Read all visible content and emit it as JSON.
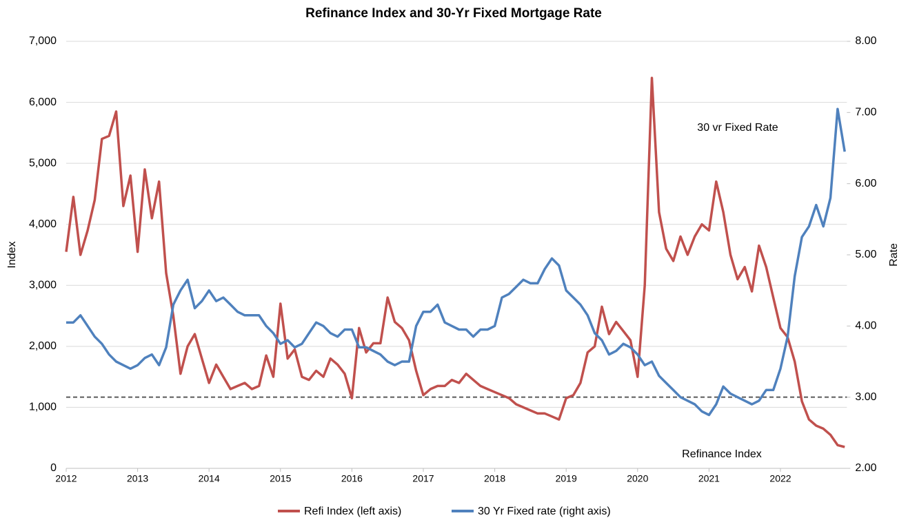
{
  "chart_data": {
    "type": "line",
    "title": "Refinance Index and 30-Yr Fixed Mortgage Rate",
    "y_label": "Index",
    "y2_label": "Rate",
    "annotations": [
      "30 vr Fixed Rate",
      "Refinance Index"
    ],
    "x": [
      2012.0,
      2012.1,
      2012.2,
      2012.3,
      2012.4,
      2012.5,
      2012.6,
      2012.7,
      2012.8,
      2012.9,
      2013.0,
      2013.1,
      2013.2,
      2013.3,
      2013.4,
      2013.5,
      2013.6,
      2013.7,
      2013.8,
      2013.9,
      2014.0,
      2014.1,
      2014.2,
      2014.3,
      2014.4,
      2014.5,
      2014.6,
      2014.7,
      2014.8,
      2014.9,
      2015.0,
      2015.1,
      2015.2,
      2015.3,
      2015.4,
      2015.5,
      2015.6,
      2015.7,
      2015.8,
      2015.9,
      2016.0,
      2016.1,
      2016.2,
      2016.3,
      2016.4,
      2016.5,
      2016.6,
      2016.7,
      2016.8,
      2016.9,
      2017.0,
      2017.1,
      2017.2,
      2017.3,
      2017.4,
      2017.5,
      2017.6,
      2017.7,
      2017.8,
      2017.9,
      2018.0,
      2018.1,
      2018.2,
      2018.3,
      2018.4,
      2018.5,
      2018.6,
      2018.7,
      2018.8,
      2018.9,
      2019.0,
      2019.1,
      2019.2,
      2019.3,
      2019.4,
      2019.5,
      2019.6,
      2019.7,
      2019.8,
      2019.9,
      2020.0,
      2020.1,
      2020.2,
      2020.3,
      2020.4,
      2020.5,
      2020.6,
      2020.7,
      2020.8,
      2020.9,
      2021.0,
      2021.1,
      2021.2,
      2021.3,
      2021.4,
      2021.5,
      2021.6,
      2021.7,
      2021.8,
      2021.9,
      2022.0,
      2022.1,
      2022.2,
      2022.3,
      2022.4,
      2022.5,
      2022.6,
      2022.7,
      2022.8,
      2022.9
    ],
    "series": [
      {
        "name": "Refi Index (left axis)",
        "color": "#c0504d",
        "axis": "y",
        "values": [
          3550,
          4450,
          3500,
          3900,
          4400,
          5400,
          5450,
          5850,
          4300,
          4800,
          3550,
          4900,
          4100,
          4700,
          3200,
          2500,
          1550,
          2000,
          2200,
          1800,
          1400,
          1700,
          1500,
          1300,
          1350,
          1400,
          1300,
          1350,
          1850,
          1500,
          2700,
          1800,
          1950,
          1500,
          1450,
          1600,
          1500,
          1800,
          1700,
          1550,
          1150,
          2300,
          1900,
          2050,
          2050,
          2800,
          2400,
          2300,
          2100,
          1600,
          1200,
          1300,
          1350,
          1350,
          1450,
          1400,
          1550,
          1450,
          1350,
          1300,
          1250,
          1200,
          1150,
          1050,
          1000,
          950,
          900,
          900,
          850,
          800,
          1150,
          1200,
          1400,
          1900,
          2000,
          2650,
          2200,
          2400,
          2250,
          2100,
          1500,
          3000,
          6400,
          4200,
          3600,
          3400,
          3800,
          3500,
          3800,
          4000,
          3900,
          4700,
          4200,
          3500,
          3100,
          3300,
          2900,
          3650,
          3300,
          2800,
          2300,
          2150,
          1750,
          1100,
          800,
          700,
          650,
          550,
          380,
          350
        ]
      },
      {
        "name": "30 Yr Fixed rate (right axis)",
        "color": "#4f81bd",
        "axis": "y2",
        "values": [
          4.05,
          4.05,
          4.15,
          4.0,
          3.85,
          3.75,
          3.6,
          3.5,
          3.45,
          3.4,
          3.45,
          3.55,
          3.6,
          3.45,
          3.7,
          4.3,
          4.5,
          4.65,
          4.25,
          4.35,
          4.5,
          4.35,
          4.4,
          4.3,
          4.2,
          4.15,
          4.15,
          4.15,
          4.0,
          3.9,
          3.75,
          3.8,
          3.7,
          3.75,
          3.9,
          4.05,
          4.0,
          3.9,
          3.85,
          3.95,
          3.95,
          3.7,
          3.7,
          3.65,
          3.6,
          3.5,
          3.45,
          3.5,
          3.5,
          4.0,
          4.2,
          4.2,
          4.3,
          4.05,
          4.0,
          3.95,
          3.95,
          3.85,
          3.95,
          3.95,
          4.0,
          4.4,
          4.45,
          4.55,
          4.65,
          4.6,
          4.6,
          4.8,
          4.95,
          4.85,
          4.5,
          4.4,
          4.3,
          4.15,
          3.9,
          3.8,
          3.6,
          3.65,
          3.75,
          3.7,
          3.6,
          3.45,
          3.5,
          3.3,
          3.2,
          3.1,
          3.0,
          2.95,
          2.9,
          2.8,
          2.75,
          2.9,
          3.15,
          3.05,
          3.0,
          2.95,
          2.9,
          2.95,
          3.1,
          3.1,
          3.4,
          3.85,
          4.7,
          5.25,
          5.4,
          5.7,
          5.4,
          5.8,
          7.05,
          6.45
        ]
      }
    ],
    "reference_line": {
      "axis": "y2",
      "value": 3,
      "color": "#595959"
    },
    "xlim": [
      2012,
      2022.93
    ],
    "xticks": [
      2012,
      2013,
      2014,
      2015,
      2016,
      2017,
      2018,
      2019,
      2020,
      2021,
      2022
    ],
    "ylim": [
      0,
      7000
    ],
    "yticks": [
      0,
      {
        "value": 1000,
        "label": "1,000"
      },
      {
        "value": 2000,
        "label": "2,000"
      },
      {
        "value": 3000,
        "label": "3,000"
      },
      {
        "value": 4000,
        "label": "4,000"
      },
      {
        "value": 5000,
        "label": "5,000"
      },
      {
        "value": 6000,
        "label": "6,000"
      },
      {
        "value": 7000,
        "label": "7,000"
      }
    ],
    "y2lim": [
      2,
      8
    ],
    "y2ticks": [
      {
        "value": 2,
        "label": "2.00"
      },
      {
        "value": 3,
        "label": "3.00"
      },
      {
        "value": 4,
        "label": "4.00"
      },
      {
        "value": 5,
        "label": "5.00"
      },
      {
        "value": 6,
        "label": "6.00"
      },
      {
        "value": 7,
        "label": "7.00"
      },
      {
        "value": 8,
        "label": "8.00"
      }
    ],
    "grid": true,
    "legend": "bottom"
  }
}
